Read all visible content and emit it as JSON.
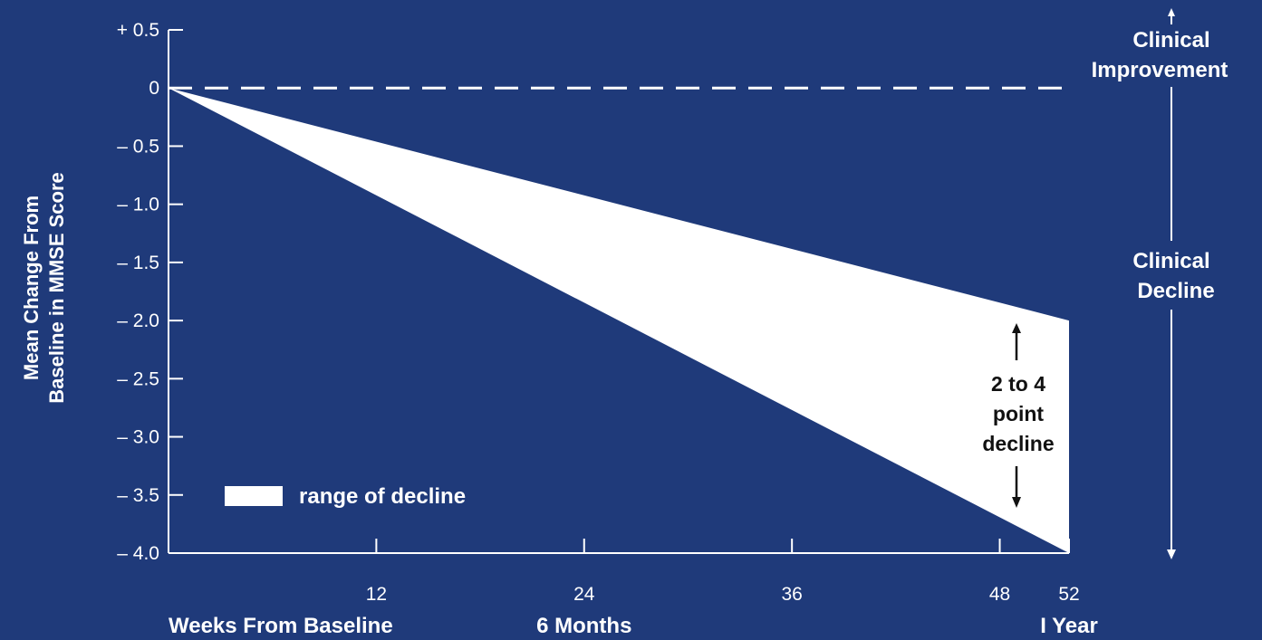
{
  "chart_data": {
    "type": "area",
    "title": "",
    "ylabel_lines": [
      "Mean Change From",
      "Baseline in MMSE Score"
    ],
    "x_ticks": [
      12,
      24,
      36,
      48,
      52
    ],
    "x_extra_labels": [
      {
        "text": "Weeks From Baseline",
        "at": 0
      },
      {
        "text": "6 Months",
        "at": 24
      },
      {
        "text": "I Year",
        "at": 52
      }
    ],
    "y_ticks": [
      {
        "value": 0.5,
        "label": "+ 0.5"
      },
      {
        "value": 0,
        "label": "0"
      },
      {
        "value": -0.5,
        "label": "– 0.5"
      },
      {
        "value": -1.0,
        "label": "– 1.0"
      },
      {
        "value": -1.5,
        "label": "– 1.5"
      },
      {
        "value": -2.0,
        "label": "– 2.0"
      },
      {
        "value": -2.5,
        "label": "– 2.5"
      },
      {
        "value": -3.0,
        "label": "– 3.0"
      },
      {
        "value": -3.5,
        "label": "– 3.5"
      },
      {
        "value": -4.0,
        "label": "– 4.0"
      }
    ],
    "xlim": [
      0,
      52
    ],
    "ylim": [
      -4.0,
      0.5
    ],
    "baseline_dashed_at": 0,
    "series": [
      {
        "name": "range of decline",
        "x": [
          0,
          52
        ],
        "upper": [
          0,
          -2.0
        ],
        "lower": [
          0,
          -4.0
        ]
      }
    ],
    "legend_label": "range of decline",
    "legend_position": "bottom-left",
    "annotation_lines": [
      "2 to 4",
      "point",
      "decline"
    ],
    "right_labels": {
      "improvement_lines": [
        "Clinical",
        "Improvement"
      ],
      "decline_lines": [
        "Clinical",
        "Decline"
      ]
    },
    "colors": {
      "background": "#1f3a7a",
      "fill": "#ffffff",
      "axis": "#ffffff",
      "annotation_text": "#111111"
    }
  }
}
